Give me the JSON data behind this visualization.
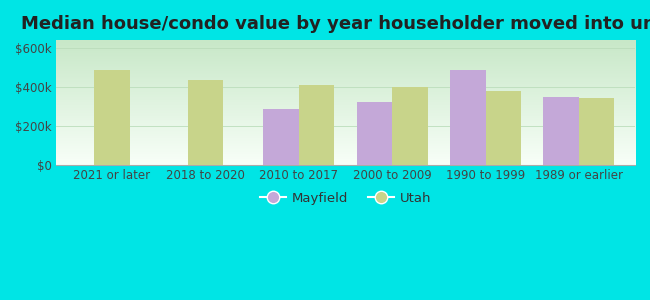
{
  "title": "Median house/condo value by year householder moved into unit",
  "categories": [
    "2021 or later",
    "2018 to 2020",
    "2010 to 2017",
    "2000 to 2009",
    "1990 to 1999",
    "1989 or earlier"
  ],
  "mayfield_values": [
    null,
    null,
    285000,
    320000,
    487000,
    348000
  ],
  "utah_values": [
    487000,
    435000,
    410000,
    400000,
    378000,
    343000
  ],
  "mayfield_color": "#c4a8d8",
  "utah_color": "#c8d48a",
  "background_color": "#00e5e5",
  "plot_bg_top": "#f5fff5",
  "plot_bg_bottom": "#d8f0d8",
  "ylabel_ticks": [
    0,
    200000,
    400000,
    600000
  ],
  "ylabel_labels": [
    "$0",
    "$200k",
    "$400k",
    "$600k"
  ],
  "ylim": [
    0,
    640000
  ],
  "bar_width": 0.38,
  "legend_mayfield": "Mayfield",
  "legend_utah": "Utah",
  "title_fontsize": 13,
  "tick_fontsize": 8.5,
  "legend_fontsize": 9.5
}
